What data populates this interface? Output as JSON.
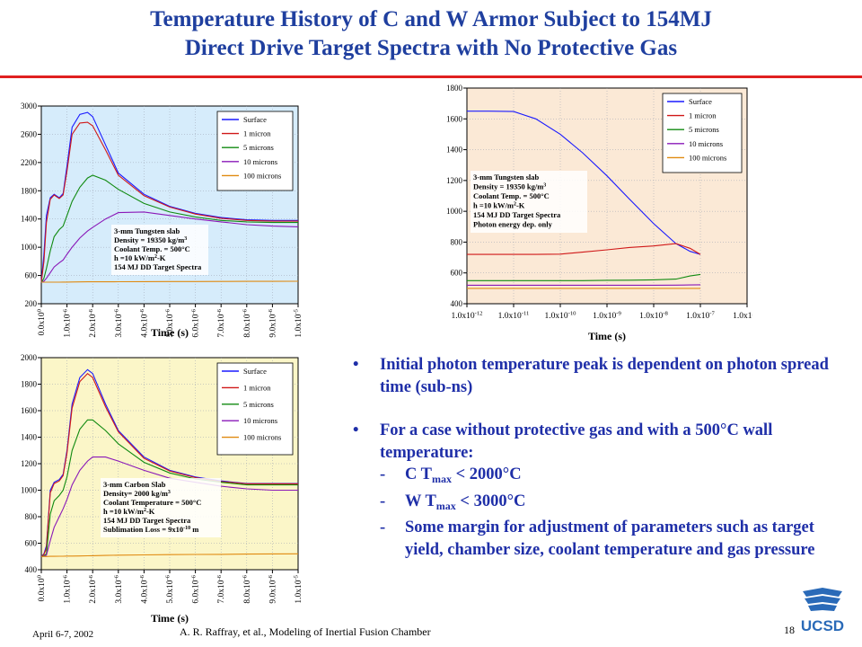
{
  "slide": {
    "title_line1": "Temperature History of C and W Armor Subject to 154MJ",
    "title_line2": "Direct Drive Target Spectra with No Protective Gas",
    "bullets": [
      "Initial photon temperature peak is dependent on photon spread time (sub-ns)",
      "For a case without protective gas and with a 500°C wall temperature:"
    ],
    "sub_items": [
      {
        "dash": "-",
        "pre": "C T",
        "sub": "max",
        "post": " < 2000°C"
      },
      {
        "dash": "-",
        "pre": "W T",
        "sub": "max",
        "post": " < 3000°C"
      },
      {
        "dash": "-",
        "pre": "Some margin for adjustment of parameters such as target yield, chamber size, coolant temperature and gas pressure",
        "sub": "",
        "post": ""
      }
    ],
    "footer_date": "April 6-7, 2002",
    "footer_credit": "A. R. Raffray, et al., Modeling of Inertial Fusion Chamber",
    "page_number": "18",
    "logo_text": "UCSD",
    "bullet_symbol": "•"
  },
  "colors": {
    "title": "#1f3f9f",
    "rule": "#e02020",
    "bullet_text": "#1f2fa8",
    "surface": "#1a1aff",
    "one_micron": "#d01818",
    "five_microns": "#108a10",
    "ten_microns": "#8a18b8",
    "hundred_microns": "#e08a10"
  },
  "chart_data": [
    {
      "type": "line",
      "id": "w-linear",
      "xlabel": "Time (s)",
      "ylabel": "",
      "background": "#d6ecfb",
      "xlim": [
        0,
        1e-05
      ],
      "ylim": [
        200,
        3000
      ],
      "yticks": [
        200,
        600,
        1000,
        1400,
        1800,
        2200,
        2600,
        3000
      ],
      "xtick_labels": [
        "0.0x10^0",
        "1.0x10^-6",
        "2.0x10^-6",
        "3.0x10^-6",
        "4.0x10^-6",
        "5.0x10^-6",
        "6.0x10^-6",
        "7.0x10^-6",
        "8.0x10^-6",
        "9.0x10^-6",
        "1.0x10^-5"
      ],
      "grid": true,
      "legend": "top-right",
      "annotation": [
        "3-mm Tungsten slab",
        "Density = 19350 kg/m^3",
        "Coolant Temp. = 500°C",
        "h =10 kW/m^2-K",
        "154 MJ DD Target Spectra"
      ],
      "x": [
        0,
        1e-07,
        2e-07,
        3.5e-07,
        5e-07,
        7e-07,
        8.5e-07,
        1e-06,
        1.2e-06,
        1.5e-06,
        1.8e-06,
        2e-06,
        2.5e-06,
        3e-06,
        4e-06,
        5e-06,
        6e-06,
        7e-06,
        8e-06,
        9e-06,
        1e-05
      ],
      "series": [
        {
          "name": "Surface",
          "color": "#1a1aff",
          "values": [
            500,
            900,
            1450,
            1700,
            1750,
            1700,
            1760,
            2150,
            2700,
            2880,
            2910,
            2850,
            2450,
            2050,
            1750,
            1580,
            1480,
            1420,
            1390,
            1380,
            1380
          ]
        },
        {
          "name": "1 micron",
          "color": "#d01818",
          "values": [
            500,
            800,
            1350,
            1680,
            1740,
            1690,
            1740,
            2080,
            2600,
            2760,
            2770,
            2720,
            2380,
            2020,
            1730,
            1570,
            1470,
            1410,
            1380,
            1370,
            1370
          ]
        },
        {
          "name": "5 microns",
          "color": "#108a10",
          "values": [
            500,
            560,
            700,
            950,
            1150,
            1250,
            1300,
            1450,
            1650,
            1850,
            1980,
            2020,
            1950,
            1820,
            1620,
            1500,
            1430,
            1380,
            1360,
            1350,
            1350
          ]
        },
        {
          "name": "10 microns",
          "color": "#8a18b8",
          "values": [
            500,
            520,
            560,
            640,
            720,
            780,
            820,
            900,
            1000,
            1130,
            1230,
            1280,
            1400,
            1490,
            1500,
            1450,
            1400,
            1360,
            1320,
            1300,
            1290
          ]
        },
        {
          "name": "100 microns",
          "color": "#e08a10",
          "values": [
            505,
            505,
            505,
            505,
            506,
            506,
            507,
            507,
            508,
            509,
            510,
            510,
            511,
            512,
            513,
            514,
            515,
            516,
            517,
            517,
            518
          ]
        }
      ]
    },
    {
      "type": "line",
      "id": "w-log",
      "xlabel": "Time (s)",
      "ylabel": "",
      "background": "#fbe9d6",
      "xscale": "log",
      "xlim": [
        1e-12,
        1e-06
      ],
      "ylim": [
        400,
        1800
      ],
      "yticks": [
        400,
        600,
        800,
        1000,
        1200,
        1400,
        1600,
        1800
      ],
      "xtick_labels": [
        "1.0x10^-12",
        "1.0x10^-11",
        "1.0x10^-10",
        "1.0x10^-9",
        "1.0x10^-8",
        "1.0x10^-7",
        "1.0x10^-6"
      ],
      "grid": true,
      "legend": "top-right",
      "annotation": [
        "3-mm Tungsten slab",
        "Density = 19350 kg/m^3",
        "Coolant Temp. = 500°C",
        "h =10 kW/m^2-K",
        "154 MJ DD Target Spectra",
        "Photon energy dep. only"
      ],
      "x": [
        1e-12,
        3e-12,
        1e-11,
        3e-11,
        1e-10,
        3e-10,
        1e-09,
        3e-09,
        1e-08,
        3e-08,
        6e-08,
        1e-07
      ],
      "series": [
        {
          "name": "Surface",
          "color": "#1a1aff",
          "values": [
            1650,
            1650,
            1648,
            1600,
            1500,
            1380,
            1230,
            1080,
            920,
            790,
            740,
            720
          ]
        },
        {
          "name": "1 micron",
          "color": "#d01818",
          "values": [
            720,
            720,
            720,
            720,
            722,
            735,
            750,
            765,
            775,
            790,
            760,
            720
          ]
        },
        {
          "name": "5 microns",
          "color": "#108a10",
          "values": [
            550,
            550,
            550,
            550,
            550,
            550,
            552,
            553,
            555,
            560,
            580,
            590
          ]
        },
        {
          "name": "10 microns",
          "color": "#8a18b8",
          "values": [
            520,
            520,
            520,
            520,
            520,
            520,
            520,
            520,
            520,
            521,
            522,
            523
          ]
        },
        {
          "name": "100 microns",
          "color": "#e08a10",
          "values": [
            500,
            500,
            500,
            500,
            500,
            500,
            500,
            500,
            500,
            500,
            500,
            500
          ]
        }
      ]
    },
    {
      "type": "line",
      "id": "c-linear",
      "xlabel": "Time (s)",
      "ylabel": "",
      "background": "#fbf6c8",
      "xlim": [
        0,
        1e-05
      ],
      "ylim": [
        400,
        2000
      ],
      "yticks": [
        400,
        600,
        800,
        1000,
        1200,
        1400,
        1600,
        1800,
        2000
      ],
      "xtick_labels": [
        "0.0x10^0",
        "1.0x10^-6",
        "2.0x10^-6",
        "3.0x10^-6",
        "4.0x10^-6",
        "5.0x10^-6",
        "6.0x10^-6",
        "7.0x10^-6",
        "8.0x10^-6",
        "9.0x10^-6",
        "1.0x10^-5"
      ],
      "grid": true,
      "legend": "top-right",
      "annotation": [
        "3-mm Carbon Slab",
        "Density= 2000 kg/m^3",
        "Coolant Temperature = 500°C",
        "h =10 kW/m^2-K",
        "154 MJ DD Target Spectra",
        "Sublimation Loss = 9x10^-10 m"
      ],
      "x": [
        0,
        1e-07,
        2e-07,
        3.5e-07,
        5e-07,
        7e-07,
        8.5e-07,
        1e-06,
        1.2e-06,
        1.5e-06,
        1.8e-06,
        2e-06,
        2.5e-06,
        3e-06,
        4e-06,
        5e-06,
        6e-06,
        7e-06,
        8e-06,
        9e-06,
        1e-05
      ],
      "series": [
        {
          "name": "Surface",
          "color": "#1a1aff",
          "values": [
            500,
            520,
            580,
            1000,
            1060,
            1080,
            1120,
            1300,
            1650,
            1850,
            1910,
            1880,
            1650,
            1450,
            1250,
            1150,
            1100,
            1070,
            1050,
            1050,
            1050
          ]
        },
        {
          "name": "1 micron",
          "color": "#d01818",
          "values": [
            500,
            515,
            560,
            980,
            1050,
            1070,
            1110,
            1280,
            1620,
            1820,
            1880,
            1850,
            1630,
            1440,
            1240,
            1145,
            1095,
            1065,
            1048,
            1048,
            1048
          ]
        },
        {
          "name": "5 microns",
          "color": "#108a10",
          "values": [
            500,
            505,
            520,
            820,
            920,
            960,
            1000,
            1100,
            1300,
            1460,
            1530,
            1530,
            1450,
            1350,
            1210,
            1130,
            1085,
            1060,
            1040,
            1040,
            1040
          ]
        },
        {
          "name": "10 microns",
          "color": "#8a18b8",
          "values": [
            500,
            502,
            510,
            620,
            720,
            800,
            860,
            930,
            1040,
            1150,
            1220,
            1250,
            1250,
            1220,
            1150,
            1090,
            1060,
            1030,
            1010,
            1000,
            1000
          ]
        },
        {
          "name": "100 microns",
          "color": "#e08a10",
          "values": [
            500,
            500,
            500,
            501,
            501,
            502,
            502,
            503,
            503,
            504,
            505,
            506,
            508,
            510,
            512,
            514,
            515,
            516,
            518,
            519,
            520
          ]
        }
      ]
    }
  ]
}
